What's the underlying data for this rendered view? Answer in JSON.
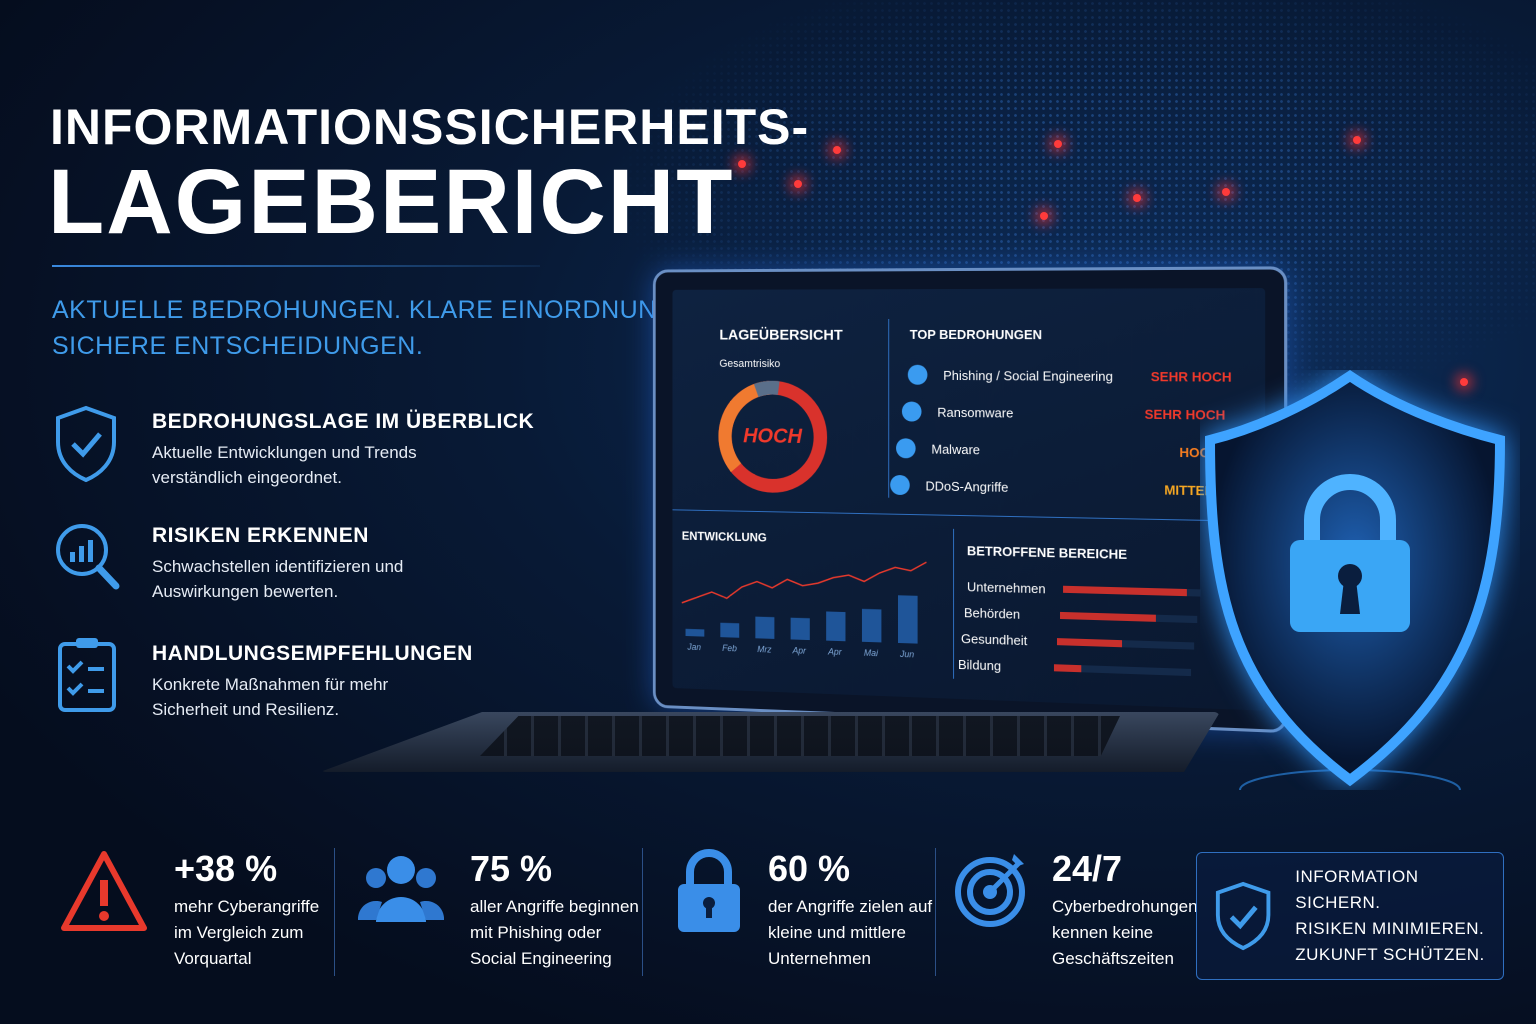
{
  "title_line1": "INFORMATIONSSICHERHEITS-",
  "title_line2": "LAGEBERICHT",
  "subtitle_line1": "AKTUELLE BEDROHUNGEN. KLARE EINORDNUNG.",
  "subtitle_line2": "SICHERE ENTSCHEIDUNGEN.",
  "features": [
    {
      "icon": "shield-check-icon",
      "title": "BEDROHUNGSLAGE IM ÜBERBLICK",
      "text1": "Aktuelle Entwicklungen und Trends",
      "text2": "verständlich eingeordnet."
    },
    {
      "icon": "magnifier-chart-icon",
      "title": "RISIKEN ERKENNEN",
      "text1": "Schwachstellen identifizieren und",
      "text2": "Auswirkungen bewerten."
    },
    {
      "icon": "clipboard-checklist-icon",
      "title": "HANDLUNGSEMPFEHLUNGEN",
      "text1": "Konkrete Maßnahmen für mehr",
      "text2": "Sicherheit und Resilienz."
    }
  ],
  "dashboard": {
    "overview_title": "LAGEÜBERSICHT",
    "overall_label": "Gesamtrisiko",
    "overall_value": "HOCH",
    "threats_title": "TOP BEDROHUNGEN",
    "threats": [
      {
        "name": "Phishing / Social Engineering",
        "level": "SEHR HOCH",
        "color": "#f0392b"
      },
      {
        "name": "Ransomware",
        "level": "SEHR HOCH",
        "color": "#f0392b"
      },
      {
        "name": "Malware",
        "level": "HOCH",
        "color": "#f57c20"
      },
      {
        "name": "DDoS-Angriffe",
        "level": "MITTEL",
        "color": "#f5a623"
      }
    ],
    "trend_title": "ENTWICKLUNG",
    "areas_title": "BETROFFENE BEREICHE",
    "areas": [
      {
        "name": "Unternehmen",
        "value": 0.9
      },
      {
        "name": "Behörden",
        "value": 0.7
      },
      {
        "name": "Gesundheit",
        "value": 0.48
      },
      {
        "name": "Bildung",
        "value": 0.2
      }
    ]
  },
  "chart_data": {
    "type": "bar",
    "categories": [
      "Jan",
      "Feb",
      "Mrz",
      "Apr",
      "Apr",
      "Mai",
      "Jun"
    ],
    "values": [
      1,
      2,
      3,
      3,
      4,
      4.5,
      6.5
    ],
    "line": [
      2,
      3,
      4,
      3,
      5,
      6,
      5,
      6.5,
      5.5,
      6,
      7,
      7.5,
      6.5,
      8,
      9,
      8.5,
      10
    ]
  },
  "stats": [
    {
      "icon": "warning-triangle-icon",
      "value": "+38 %",
      "l1": "mehr Cyberangriffe",
      "l2": "im Vergleich zum",
      "l3": "Vorquartal"
    },
    {
      "icon": "users-icon",
      "value": "75 %",
      "l1": "aller Angriffe beginnen",
      "l2": "mit Phishing oder",
      "l3": "Social Engineering"
    },
    {
      "icon": "padlock-icon",
      "value": "60 %",
      "l1": "der Angriffe zielen auf",
      "l2": "kleine und mittlere",
      "l3": "Unternehmen"
    },
    {
      "icon": "target-icon",
      "value": "24/7",
      "l1": "Cyberbedrohungen",
      "l2": "kennen keine",
      "l3": "Geschäftszeiten"
    }
  ],
  "cta": {
    "l1": "INFORMATION SICHERN.",
    "l2": "RISIKEN MINIMIEREN.",
    "l3": "ZUKUNFT SCHÜTZEN."
  },
  "colors": {
    "accent": "#3f9bea",
    "danger": "#f0392b",
    "background": "#071530"
  }
}
